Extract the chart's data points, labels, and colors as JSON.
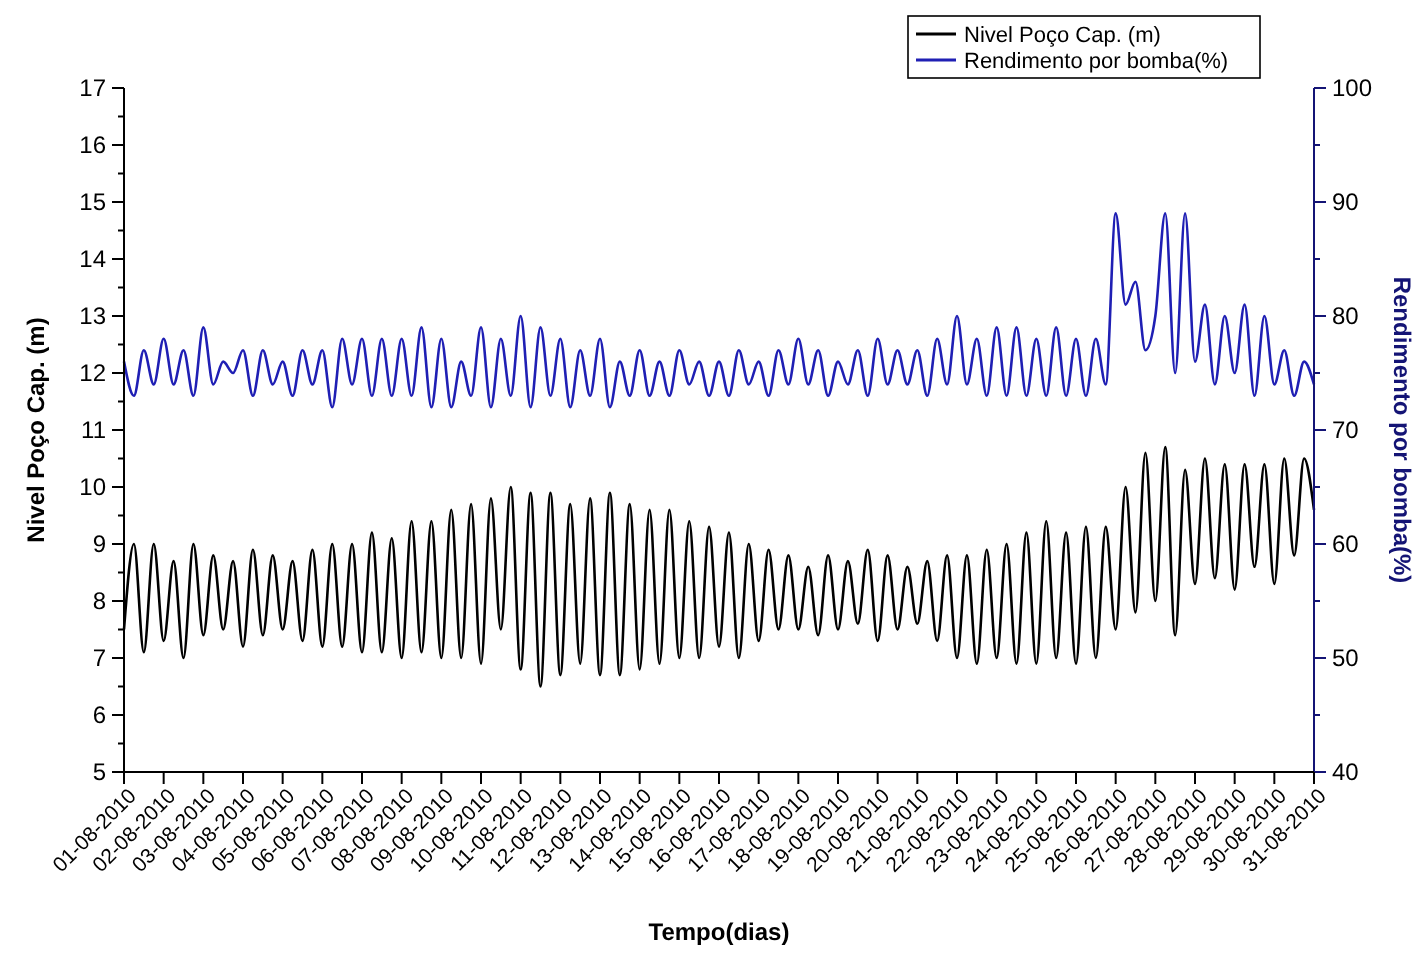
{
  "chart_data": {
    "type": "line",
    "xlabel": "Tempo(dias)",
    "ylabel": "Nivel Poço Cap. (m)",
    "y2label": "Rendimento por bomba(%)",
    "legend": "top right",
    "marker": "none",
    "line_style": "solid",
    "grid": false,
    "x": [
      "2010-08-01T00:00",
      "2010-08-01T06:00",
      "2010-08-01T12:00",
      "2010-08-01T18:00",
      "2010-08-02T00:00",
      "2010-08-02T06:00",
      "2010-08-02T12:00",
      "2010-08-02T18:00",
      "2010-08-03T00:00",
      "2010-08-03T06:00",
      "2010-08-03T12:00",
      "2010-08-03T18:00",
      "2010-08-04T00:00",
      "2010-08-04T06:00",
      "2010-08-04T12:00",
      "2010-08-04T18:00",
      "2010-08-05T00:00",
      "2010-08-05T06:00",
      "2010-08-05T12:00",
      "2010-08-05T18:00",
      "2010-08-06T00:00",
      "2010-08-06T06:00",
      "2010-08-06T12:00",
      "2010-08-06T18:00",
      "2010-08-07T00:00",
      "2010-08-07T06:00",
      "2010-08-07T12:00",
      "2010-08-07T18:00",
      "2010-08-08T00:00",
      "2010-08-08T06:00",
      "2010-08-08T12:00",
      "2010-08-08T18:00",
      "2010-08-09T00:00",
      "2010-08-09T06:00",
      "2010-08-09T12:00",
      "2010-08-09T18:00",
      "2010-08-10T00:00",
      "2010-08-10T06:00",
      "2010-08-10T12:00",
      "2010-08-10T18:00",
      "2010-08-11T00:00",
      "2010-08-11T06:00",
      "2010-08-11T12:00",
      "2010-08-11T18:00",
      "2010-08-12T00:00",
      "2010-08-12T06:00",
      "2010-08-12T12:00",
      "2010-08-12T18:00",
      "2010-08-13T00:00",
      "2010-08-13T06:00",
      "2010-08-13T12:00",
      "2010-08-13T18:00",
      "2010-08-14T00:00",
      "2010-08-14T06:00",
      "2010-08-14T12:00",
      "2010-08-14T18:00",
      "2010-08-15T00:00",
      "2010-08-15T06:00",
      "2010-08-15T12:00",
      "2010-08-15T18:00",
      "2010-08-16T00:00",
      "2010-08-16T06:00",
      "2010-08-16T12:00",
      "2010-08-16T18:00",
      "2010-08-17T00:00",
      "2010-08-17T06:00",
      "2010-08-17T12:00",
      "2010-08-17T18:00",
      "2010-08-18T00:00",
      "2010-08-18T06:00",
      "2010-08-18T12:00",
      "2010-08-18T18:00",
      "2010-08-19T00:00",
      "2010-08-19T06:00",
      "2010-08-19T12:00",
      "2010-08-19T18:00",
      "2010-08-20T00:00",
      "2010-08-20T06:00",
      "2010-08-20T12:00",
      "2010-08-20T18:00",
      "2010-08-21T00:00",
      "2010-08-21T06:00",
      "2010-08-21T12:00",
      "2010-08-21T18:00",
      "2010-08-22T00:00",
      "2010-08-22T06:00",
      "2010-08-22T12:00",
      "2010-08-22T18:00",
      "2010-08-23T00:00",
      "2010-08-23T06:00",
      "2010-08-23T12:00",
      "2010-08-23T18:00",
      "2010-08-24T00:00",
      "2010-08-24T06:00",
      "2010-08-24T12:00",
      "2010-08-24T18:00",
      "2010-08-25T00:00",
      "2010-08-25T06:00",
      "2010-08-25T12:00",
      "2010-08-25T18:00",
      "2010-08-26T00:00",
      "2010-08-26T06:00",
      "2010-08-26T12:00",
      "2010-08-26T18:00",
      "2010-08-27T00:00",
      "2010-08-27T06:00",
      "2010-08-27T12:00",
      "2010-08-27T18:00",
      "2010-08-28T00:00",
      "2010-08-28T06:00",
      "2010-08-28T12:00",
      "2010-08-28T18:00",
      "2010-08-29T00:00",
      "2010-08-29T06:00",
      "2010-08-29T12:00",
      "2010-08-29T18:00",
      "2010-08-30T00:00",
      "2010-08-30T06:00",
      "2010-08-30T12:00",
      "2010-08-30T18:00",
      "2010-08-31T00:00"
    ],
    "xlim": [
      "2010-08-01",
      "2010-08-31"
    ],
    "xticks": [
      {
        "value": "2010-08-01",
        "label": "01-08-2010"
      },
      {
        "value": "2010-08-02",
        "label": "02-08-2010"
      },
      {
        "value": "2010-08-03",
        "label": "03-08-2010"
      },
      {
        "value": "2010-08-04",
        "label": "04-08-2010"
      },
      {
        "value": "2010-08-05",
        "label": "05-08-2010"
      },
      {
        "value": "2010-08-06",
        "label": "06-08-2010"
      },
      {
        "value": "2010-08-07",
        "label": "07-08-2010"
      },
      {
        "value": "2010-08-08",
        "label": "08-08-2010"
      },
      {
        "value": "2010-08-09",
        "label": "09-08-2010"
      },
      {
        "value": "2010-08-10",
        "label": "10-08-2010"
      },
      {
        "value": "2010-08-11",
        "label": "11-08-2010"
      },
      {
        "value": "2010-08-12",
        "label": "12-08-2010"
      },
      {
        "value": "2010-08-13",
        "label": "13-08-2010"
      },
      {
        "value": "2010-08-14",
        "label": "14-08-2010"
      },
      {
        "value": "2010-08-15",
        "label": "15-08-2010"
      },
      {
        "value": "2010-08-16",
        "label": "16-08-2010"
      },
      {
        "value": "2010-08-17",
        "label": "17-08-2010"
      },
      {
        "value": "2010-08-18",
        "label": "18-08-2010"
      },
      {
        "value": "2010-08-19",
        "label": "19-08-2010"
      },
      {
        "value": "2010-08-20",
        "label": "20-08-2010"
      },
      {
        "value": "2010-08-21",
        "label": "21-08-2010"
      },
      {
        "value": "2010-08-22",
        "label": "22-08-2010"
      },
      {
        "value": "2010-08-23",
        "label": "23-08-2010"
      },
      {
        "value": "2010-08-24",
        "label": "24-08-2010"
      },
      {
        "value": "2010-08-25",
        "label": "25-08-2010"
      },
      {
        "value": "2010-08-26",
        "label": "26-08-2010"
      },
      {
        "value": "2010-08-27",
        "label": "27-08-2010"
      },
      {
        "value": "2010-08-28",
        "label": "28-08-2010"
      },
      {
        "value": "2010-08-29",
        "label": "29-08-2010"
      },
      {
        "value": "2010-08-30",
        "label": "30-08-2010"
      },
      {
        "value": "2010-08-31",
        "label": "31-08-2010"
      }
    ],
    "ylim": [
      5,
      17
    ],
    "yticks": [
      5,
      {
        "value": 5.5,
        "label": null
      },
      6,
      {
        "value": 6.5,
        "label": null
      },
      7,
      {
        "value": 7.5,
        "label": null
      },
      8,
      {
        "value": 8.5,
        "label": null
      },
      9,
      {
        "value": 9.5,
        "label": null
      },
      10,
      {
        "value": 10.5,
        "label": null
      },
      11,
      {
        "value": 11.5,
        "label": null
      },
      12,
      {
        "value": 12.5,
        "label": null
      },
      13,
      {
        "value": 13.5,
        "label": null
      },
      14,
      {
        "value": 14.5,
        "label": null
      },
      15,
      {
        "value": 15.5,
        "label": null
      },
      16,
      {
        "value": 16.5,
        "label": null
      },
      17
    ],
    "y2lim": [
      40,
      100
    ],
    "y2ticks": [
      40,
      {
        "value": 45,
        "label": null
      },
      50,
      {
        "value": 55,
        "label": null
      },
      60,
      {
        "value": 65,
        "label": null
      },
      70,
      {
        "value": 75,
        "label": null
      },
      80,
      {
        "value": 85,
        "label": null
      },
      90,
      {
        "value": 95,
        "label": null
      },
      100
    ],
    "series": [
      {
        "name": "Nivel Poço Cap. (m)",
        "color": "#000000",
        "values": [
          7.5,
          9.0,
          7.1,
          9.0,
          7.3,
          8.7,
          7.0,
          9.0,
          7.4,
          8.8,
          7.5,
          8.7,
          7.2,
          8.9,
          7.4,
          8.8,
          7.5,
          8.7,
          7.3,
          8.9,
          7.2,
          9.0,
          7.2,
          9.0,
          7.1,
          9.2,
          7.1,
          9.1,
          7.0,
          9.4,
          7.1,
          9.4,
          7.0,
          9.6,
          7.0,
          9.7,
          6.9,
          9.8,
          7.5,
          10.0,
          6.8,
          9.9,
          6.5,
          9.9,
          6.7,
          9.7,
          6.9,
          9.8,
          6.7,
          9.9,
          6.7,
          9.7,
          6.8,
          9.6,
          6.9,
          9.6,
          7.0,
          9.4,
          7.0,
          9.3,
          7.2,
          9.2,
          7.0,
          9.0,
          7.3,
          8.9,
          7.5,
          8.8,
          7.5,
          8.6,
          7.4,
          8.8,
          7.5,
          8.7,
          7.6,
          8.9,
          7.3,
          8.8,
          7.5,
          8.6,
          7.6,
          8.7,
          7.3,
          8.8,
          7.0,
          8.8,
          6.9,
          8.9,
          7.0,
          9.0,
          6.9,
          9.2,
          6.9,
          9.4,
          7.0,
          9.2,
          6.9,
          9.3,
          7.0,
          9.3,
          7.5,
          10.0,
          7.8,
          10.6,
          8.0,
          10.7,
          7.4,
          10.3,
          8.3,
          10.5,
          8.4,
          10.4,
          8.2,
          10.4,
          8.6,
          10.4,
          8.3,
          10.5,
          8.8,
          10.5,
          9.6
        ]
      },
      {
        "name": "Rendimento por bomba(%)",
        "color": "#1f1fb4",
        "axis": "y2",
        "values": [
          76,
          73,
          77,
          74,
          78,
          74,
          77,
          73,
          79,
          74,
          76,
          75,
          77,
          73,
          77,
          74,
          76,
          73,
          77,
          74,
          77,
          72,
          78,
          74,
          78,
          73,
          78,
          73,
          78,
          73,
          79,
          72,
          78,
          72,
          76,
          73,
          79,
          72,
          78,
          73,
          80,
          72,
          79,
          73,
          78,
          72,
          77,
          73,
          78,
          72,
          76,
          73,
          77,
          73,
          76,
          73,
          77,
          74,
          76,
          73,
          76,
          73,
          77,
          74,
          76,
          73,
          77,
          74,
          78,
          74,
          77,
          73,
          76,
          74,
          77,
          73,
          78,
          74,
          77,
          74,
          77,
          73,
          78,
          74,
          80,
          74,
          78,
          73,
          79,
          73,
          79,
          73,
          78,
          73,
          79,
          73,
          78,
          73,
          78,
          74,
          89,
          81,
          83,
          77,
          80,
          89,
          75,
          89,
          76,
          81,
          74,
          80,
          75,
          81,
          73,
          80,
          74,
          77,
          73,
          76,
          74
        ]
      }
    ]
  }
}
